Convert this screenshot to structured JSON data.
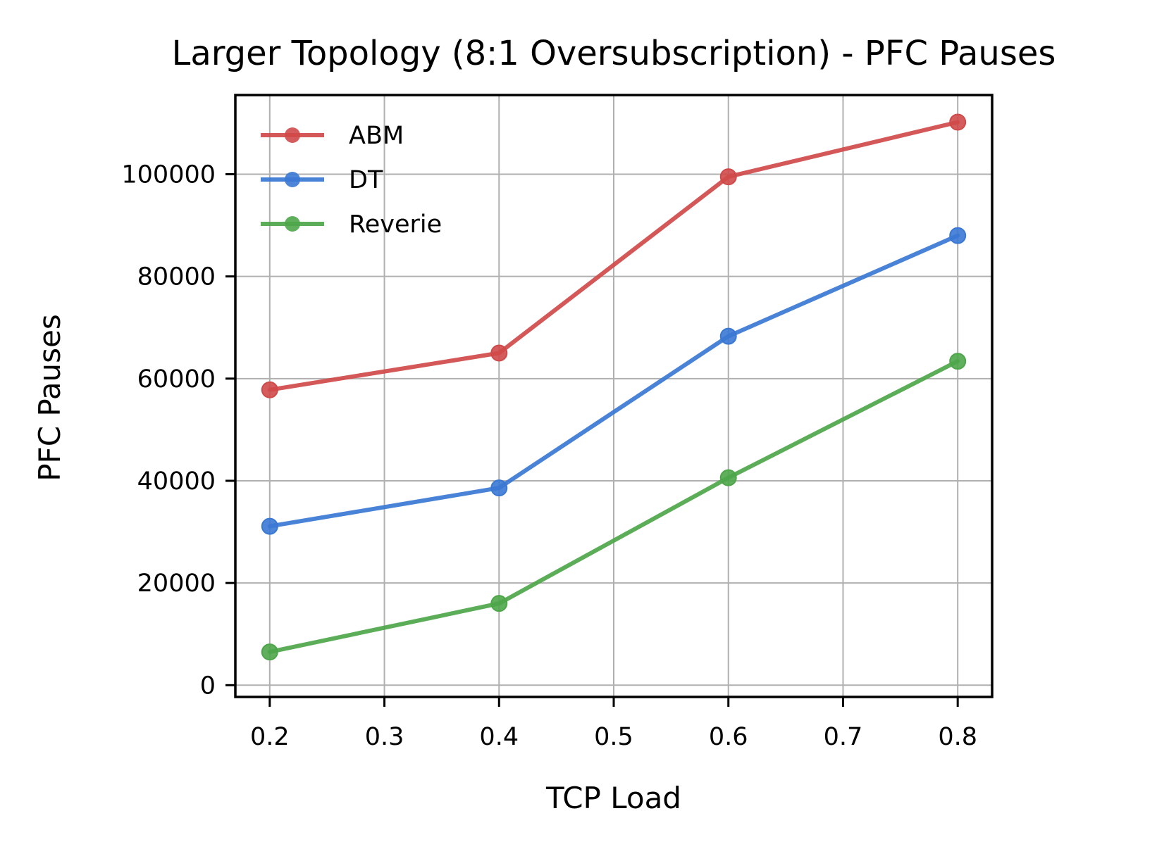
{
  "chart_data": {
    "type": "line",
    "title": "Larger Topology (8:1 Oversubscription) - PFC Pauses",
    "xlabel": "TCP Load",
    "ylabel": "PFC Pauses",
    "x": [
      0.2,
      0.4,
      0.6,
      0.8
    ],
    "xlim": [
      0.17,
      0.83
    ],
    "ylim": [
      -2300,
      115500
    ],
    "xticks": [
      0.2,
      0.3,
      0.4,
      0.5,
      0.6,
      0.7,
      0.8
    ],
    "xtick_labels": [
      "0.2",
      "0.3",
      "0.4",
      "0.5",
      "0.6",
      "0.7",
      "0.8"
    ],
    "yticks": [
      0,
      20000,
      40000,
      60000,
      80000,
      100000
    ],
    "ytick_labels": [
      "0",
      "20000",
      "40000",
      "60000",
      "80000",
      "100000"
    ],
    "grid": true,
    "legend_position": "upper-left",
    "series": [
      {
        "name": "ABM",
        "color": "#d04a4a",
        "marker": "circle",
        "values": [
          57800,
          65000,
          99500,
          110200
        ]
      },
      {
        "name": "DT",
        "color": "#3a78d4",
        "marker": "circle",
        "values": [
          31100,
          38600,
          68300,
          88000
        ]
      },
      {
        "name": "Reverie",
        "color": "#4ea64a",
        "marker": "circle",
        "values": [
          6500,
          16000,
          40600,
          63400
        ]
      }
    ]
  }
}
